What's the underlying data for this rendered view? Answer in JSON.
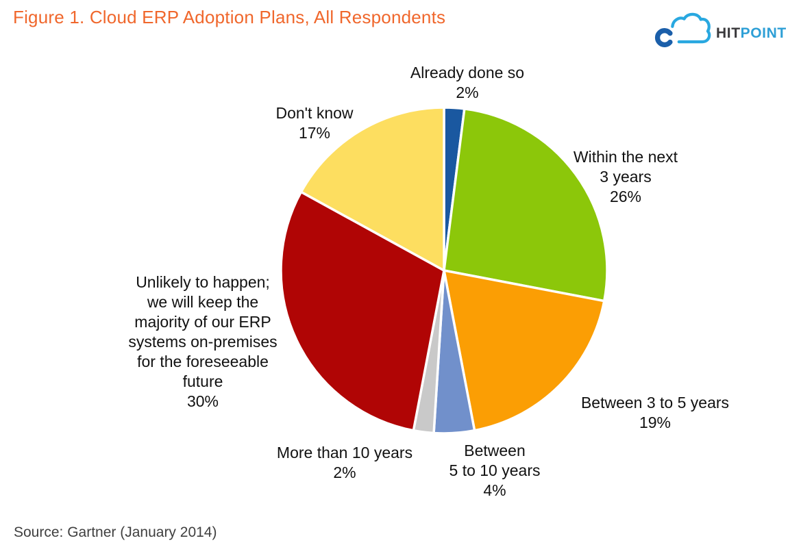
{
  "page": {
    "title": "Figure 1. Cloud ERP Adoption Plans, All Respondents",
    "title_color": "#F0672C",
    "source": "Source: Gartner (January 2014)"
  },
  "logo": {
    "name": "HITPOINT",
    "text_dark": "HIT",
    "text_light": "POINT",
    "colors": {
      "cloud_outline": "#29A8E0",
      "c_mark": "#1B5FAA",
      "text_dark": "#39383B",
      "text_light": "#2E9FD6"
    }
  },
  "chart_data": {
    "type": "pie",
    "title": "Figure 1. Cloud ERP Adoption Plans, All Respondents",
    "start_angle_deg": 0,
    "direction": "clockwise",
    "legend": "none",
    "labels_position": "outside",
    "separator_color": "#ffffff",
    "source": "Gartner (January 2014)",
    "categories": [
      "Already done so",
      "Within the next 3 years",
      "Between 3 to 5 years",
      "Between 5 to 10 years",
      "More than 10 years",
      "Unlikely to happen; we will keep the majority of our ERP systems on-premises for the foreseeable future",
      "Don't know"
    ],
    "values": [
      2,
      26,
      19,
      4,
      2,
      30,
      17
    ],
    "slices": [
      {
        "category": "Already done so",
        "value": 2,
        "color": "#1A58A0",
        "label_lines": [
          "Already done so",
          "2%"
        ]
      },
      {
        "category": "Within the next 3 years",
        "value": 26,
        "color": "#8CC70A",
        "label_lines": [
          "Within the next",
          "3 years",
          "26%"
        ]
      },
      {
        "category": "Between 3 to 5 years",
        "value": 19,
        "color": "#FB9E04",
        "label_lines": [
          "Between 3 to 5 years",
          "19%"
        ]
      },
      {
        "category": "Between 5 to 10 years",
        "value": 4,
        "color": "#7190CB",
        "label_lines": [
          "Between",
          "5 to 10 years",
          "4%"
        ]
      },
      {
        "category": "More than 10 years",
        "value": 2,
        "color": "#C9C9C9",
        "label_lines": [
          "More than 10 years",
          "2%"
        ]
      },
      {
        "category": "Unlikely to happen; we will keep the majority of our ERP systems on-premises for the foreseeable future",
        "value": 30,
        "color": "#B00505",
        "label_lines": [
          "Unlikely to happen;",
          "we will keep the",
          "majority of our ERP",
          "systems on-premises",
          "for the foreseeable",
          "future",
          "30%"
        ]
      },
      {
        "category": "Don't know",
        "value": 17,
        "color": "#FDDE60",
        "label_lines": [
          "Don't know",
          "17%"
        ]
      }
    ]
  }
}
